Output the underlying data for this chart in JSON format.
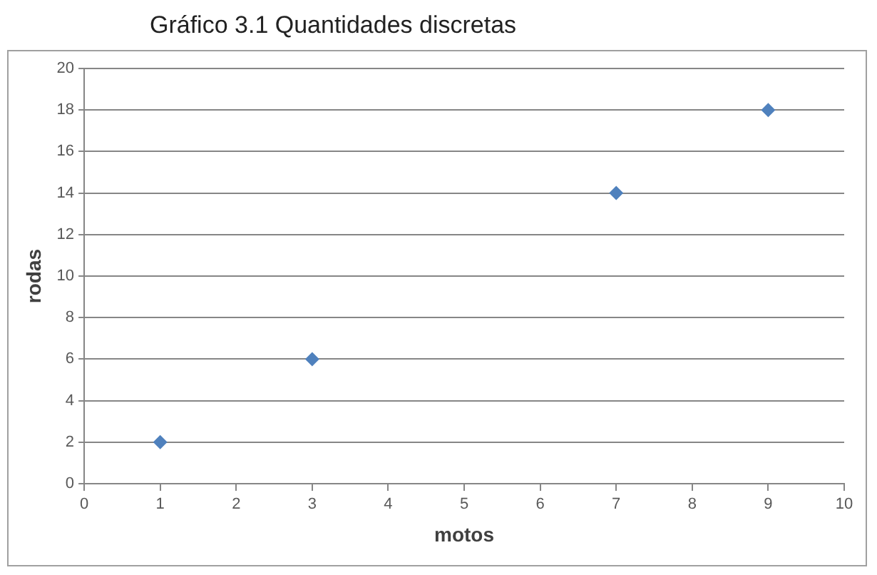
{
  "chart_data": {
    "type": "scatter",
    "title": "Gráfico 3.1 Quantidades discretas",
    "xlabel": "motos",
    "ylabel": "rodas",
    "x": [
      1,
      3,
      7,
      9
    ],
    "series": [
      {
        "color": "#4f81bd",
        "values": [
          2,
          6,
          14,
          18
        ]
      }
    ],
    "xlim": [
      0,
      10
    ],
    "xticks": [
      0,
      1,
      2,
      3,
      4,
      5,
      6,
      7,
      8,
      9,
      10
    ],
    "ylim": [
      0,
      20
    ],
    "yticks": [
      0,
      2,
      4,
      6,
      8,
      10,
      12,
      14,
      16,
      18,
      20
    ],
    "grid": "y",
    "marker": "diamond",
    "legend": false
  }
}
